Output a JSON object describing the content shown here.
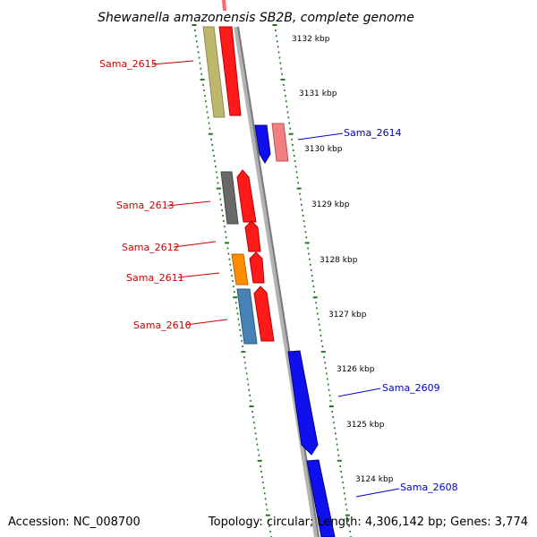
{
  "title": "Shewanella amazonensis SB2B, complete genome",
  "footer": {
    "accession": "Accession: NC_008700",
    "info": "Topology: circular; Length: 4,306,142 bp; Genes: 3,774"
  },
  "colors": {
    "forward_label": "#cc0000",
    "reverse_label": "#0000cc",
    "ruler": "#1a7a1a",
    "backbone": "#8c8c8c"
  },
  "scale_labels": [
    "3132 kbp",
    "3131 kbp",
    "3130 kbp",
    "3129 kbp",
    "3128 kbp",
    "3127 kbp",
    "3126 kbp",
    "3125 kbp",
    "3124 kbp"
  ],
  "gene_labels": [
    {
      "name": "Sama_2615",
      "strand": "forward"
    },
    {
      "name": "Sama_2614",
      "strand": "reverse"
    },
    {
      "name": "Sama_2613",
      "strand": "forward"
    },
    {
      "name": "Sama_2612",
      "strand": "forward"
    },
    {
      "name": "Sama_2611",
      "strand": "forward"
    },
    {
      "name": "Sama_2610",
      "strand": "forward"
    },
    {
      "name": "Sama_2609",
      "strand": "reverse"
    },
    {
      "name": "Sama_2608",
      "strand": "reverse"
    }
  ]
}
